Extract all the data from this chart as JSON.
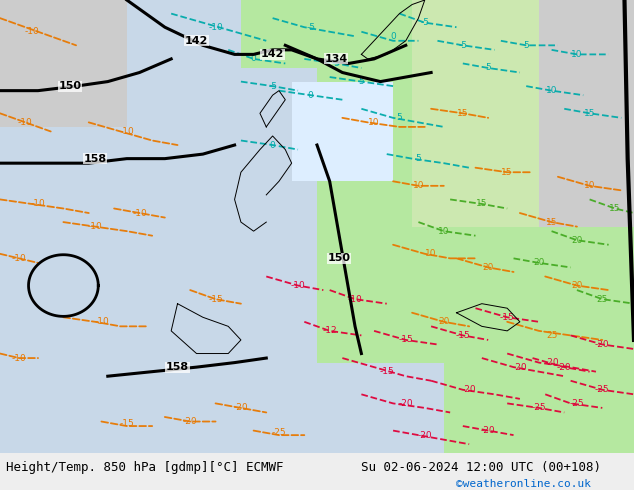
{
  "title_left": "Height/Temp. 850 hPa [gdmp][°C] ECMWF",
  "title_right": "Su 02-06-2024 12:00 UTC (00+108)",
  "credit": "©weatheronline.co.uk",
  "credit_color": "#0066cc",
  "bg_color_land": "#b5e8a0",
  "bg_color_sea": "#c8d8e8",
  "bg_color_grey": "#cccccc",
  "footer_bg": "#eeeeee",
  "title_fontsize": 9,
  "credit_fontsize": 8
}
